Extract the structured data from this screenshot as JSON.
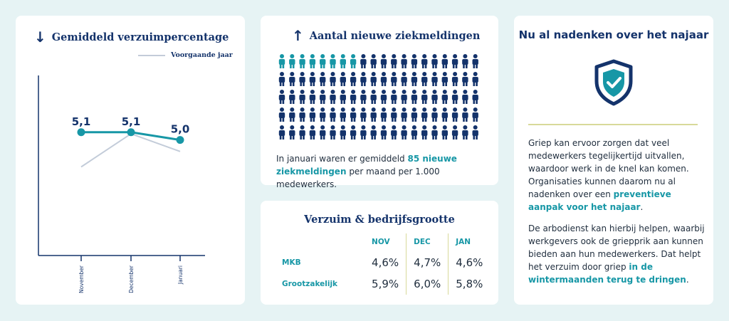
{
  "chart_card": {
    "title": "Gemiddeld verzuimpercentage",
    "legend_label": "Voorgaande jaar",
    "chart_data": {
      "type": "line",
      "categories": [
        "November",
        "December",
        "Januari"
      ],
      "series": [
        {
          "values": [
            5.1,
            5.1,
            5.0
          ],
          "labels": [
            "5,1",
            "5,1",
            "5,0"
          ],
          "color": "#1797a6"
        },
        {
          "name": "Voorgaande jaar",
          "values": [
            4.65,
            5.08,
            4.85
          ],
          "color": "#c3ccd9"
        }
      ],
      "ylim": [
        3.5,
        5.8
      ],
      "grid": false
    }
  },
  "sick_card": {
    "title": "Aantal nieuwe ziekmeldingen",
    "icon_rows": 5,
    "icon_cols": 20,
    "highlight_row1_count": 8,
    "text_before": "In januari waren er gemiddeld ",
    "text_highlight": "85 nieuwe ziekmeldingen",
    "text_after": " per maand per 1.000 medewerkers."
  },
  "size_card": {
    "title": "Verzuim & bedrijfsgrootte",
    "columns": [
      "NOV",
      "DEC",
      "JAN"
    ],
    "rows": [
      {
        "label": "MKB",
        "values": [
          "4,6%",
          "4,7%",
          "4,6%"
        ]
      },
      {
        "label": "Grootzakelijk",
        "values": [
          "5,9%",
          "6,0%",
          "5,8%"
        ]
      }
    ]
  },
  "info_card": {
    "title": "Nu al nadenken over het najaar",
    "p1_before": "Griep kan ervoor zorgen dat veel medewerkers tegelijkertijd uitvallen, waardoor werk in de knel kan komen. Organisaties kunnen daarom nu al nadenken over een ",
    "p1_highlight": "preventieve aanpak voor het najaar",
    "p1_after": ".",
    "p2_before": "De arbodienst kan hierbij helpen, waarbij werkgevers ook de griepprik aan kunnen bieden aan hun medewerkers. Dat helpt het verzuim door griep ",
    "p2_highlight": "in de wintermaanden terug te dringen",
    "p2_after": "."
  },
  "colors": {
    "navy": "#14336b",
    "teal": "#1797a6",
    "grey_line": "#c3ccd9",
    "background": "#e6f3f4"
  },
  "icons": {
    "down_arrow": "arrow-down-icon",
    "up_arrow": "arrow-up-icon",
    "person": "person-icon",
    "shield": "shield-check-icon"
  }
}
